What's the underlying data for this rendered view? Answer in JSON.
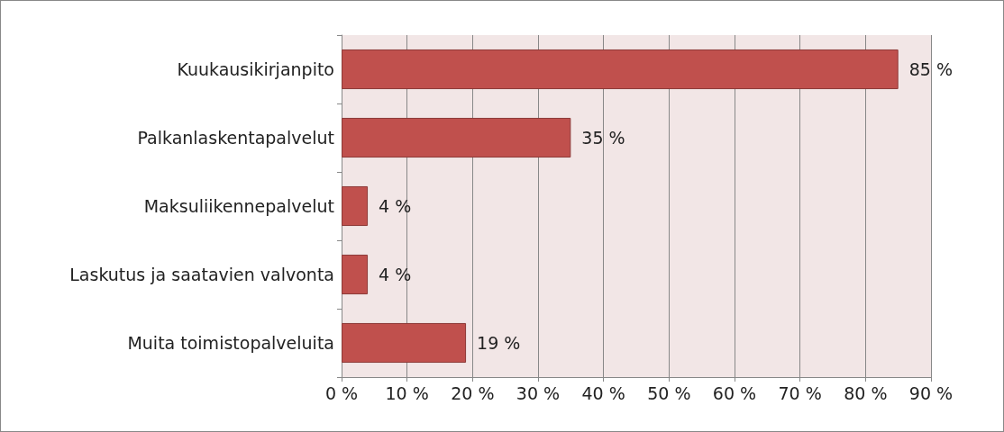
{
  "chart_data": {
    "type": "bar",
    "orientation": "horizontal",
    "categories": [
      "Kuukausikirjanpito",
      "Palkanlaskentapalvelut",
      "Maksuliikennepalvelut",
      "Laskutus ja saatavien valvonta",
      "Muita toimistopalveluita"
    ],
    "values": [
      85,
      35,
      4,
      4,
      19
    ],
    "value_labels": [
      "85 %",
      "35 %",
      "4 %",
      "4 %",
      "19 %"
    ],
    "color": "#c0504d",
    "xlim": [
      0,
      90
    ],
    "xticks": [
      {
        "value": 0,
        "label": "0 %"
      },
      {
        "value": 10,
        "label": "10 %"
      },
      {
        "value": 20,
        "label": "20 %"
      },
      {
        "value": 30,
        "label": "30 %"
      },
      {
        "value": 40,
        "label": "40 %"
      },
      {
        "value": 50,
        "label": "50 %"
      },
      {
        "value": 60,
        "label": "60 %"
      },
      {
        "value": 70,
        "label": "70 %"
      },
      {
        "value": 80,
        "label": "80 %"
      },
      {
        "value": 90,
        "label": "90 %"
      }
    ],
    "grid": "x"
  }
}
